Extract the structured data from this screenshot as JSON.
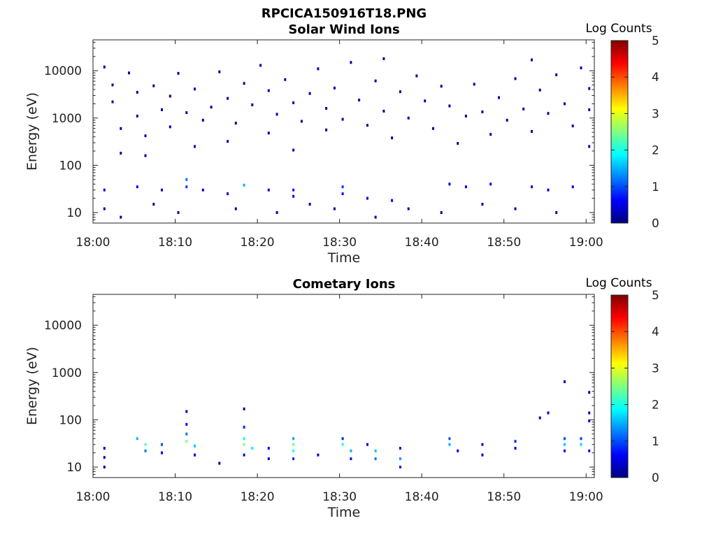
{
  "figure_title": "RPCICA150916T18.PNG",
  "colormap_stops": [
    "#00007f",
    "#0000ff",
    "#007fff",
    "#00ffff",
    "#7fff7f",
    "#ffff00",
    "#ff7f00",
    "#ff0000",
    "#7f0000"
  ],
  "chart_data": [
    {
      "type": "heatmap",
      "title": "Solar Wind Ions",
      "xlabel": "Time",
      "ylabel": "Energy (eV)",
      "yscale": "log",
      "ylim": [
        6,
        45000
      ],
      "xlim": [
        "18:00",
        "19:01"
      ],
      "xticks": [
        "18:00",
        "18:10",
        "18:20",
        "18:30",
        "18:40",
        "18:50",
        "19:00"
      ],
      "yticks": [
        "10",
        "100",
        "1000",
        "10000"
      ],
      "colorbar": {
        "label": "Log Counts",
        "range": [
          0,
          5
        ],
        "ticks": [
          "0",
          "1",
          "2",
          "3",
          "4",
          "5"
        ]
      },
      "pixels": [
        [
          "18:01",
          12000,
          0.2
        ],
        [
          "18:02",
          5000,
          0.2
        ],
        [
          "18:02",
          2200,
          0.2
        ],
        [
          "18:03",
          600,
          0.2
        ],
        [
          "18:03",
          180,
          0.2
        ],
        [
          "18:04",
          9000,
          0.2
        ],
        [
          "18:05",
          3500,
          0.2
        ],
        [
          "18:05",
          1100,
          0.2
        ],
        [
          "18:06",
          420,
          0.2
        ],
        [
          "18:06",
          160,
          0.2
        ],
        [
          "18:07",
          4800,
          0.2
        ],
        [
          "18:08",
          1500,
          0.2
        ],
        [
          "18:09",
          650,
          0.2
        ],
        [
          "18:09",
          2900,
          0.2
        ],
        [
          "18:10",
          8800,
          0.2
        ],
        [
          "18:11",
          1300,
          0.2
        ],
        [
          "18:12",
          250,
          0.2
        ],
        [
          "18:12",
          4100,
          0.2
        ],
        [
          "18:13",
          900,
          0.2
        ],
        [
          "18:14",
          1700,
          0.2
        ],
        [
          "18:15",
          9500,
          0.2
        ],
        [
          "18:16",
          2600,
          0.2
        ],
        [
          "18:16",
          320,
          0.2
        ],
        [
          "18:17",
          780,
          0.2
        ],
        [
          "18:18",
          5400,
          0.2
        ],
        [
          "18:19",
          1900,
          0.2
        ],
        [
          "18:20",
          13000,
          0.2
        ],
        [
          "18:21",
          3800,
          0.2
        ],
        [
          "18:21",
          480,
          0.2
        ],
        [
          "18:22",
          1200,
          0.2
        ],
        [
          "18:23",
          6500,
          0.2
        ],
        [
          "18:24",
          2100,
          0.2
        ],
        [
          "18:24",
          210,
          0.2
        ],
        [
          "18:25",
          850,
          0.2
        ],
        [
          "18:26",
          3300,
          0.2
        ],
        [
          "18:27",
          11000,
          0.2
        ],
        [
          "18:28",
          1600,
          0.2
        ],
        [
          "18:28",
          560,
          0.2
        ],
        [
          "18:29",
          4300,
          0.2
        ],
        [
          "18:30",
          940,
          0.2
        ],
        [
          "18:31",
          15000,
          0.2
        ],
        [
          "18:32",
          2400,
          0.2
        ],
        [
          "18:33",
          700,
          0.2
        ],
        [
          "18:34",
          6100,
          0.2
        ],
        [
          "18:35",
          18000,
          0.2
        ],
        [
          "18:35",
          1400,
          0.2
        ],
        [
          "18:36",
          380,
          0.2
        ],
        [
          "18:37",
          3600,
          0.2
        ],
        [
          "18:38",
          1000,
          0.2
        ],
        [
          "18:39",
          7800,
          0.2
        ],
        [
          "18:40",
          2300,
          0.2
        ],
        [
          "18:41",
          600,
          0.2
        ],
        [
          "18:42",
          4700,
          0.2
        ],
        [
          "18:43",
          1800,
          0.2
        ],
        [
          "18:44",
          290,
          0.2
        ],
        [
          "18:45",
          1100,
          0.2
        ],
        [
          "18:46",
          5200,
          0.2
        ],
        [
          "18:47",
          1350,
          0.2
        ],
        [
          "18:48",
          450,
          0.2
        ],
        [
          "18:49",
          2700,
          0.2
        ],
        [
          "18:50",
          900,
          0.2
        ],
        [
          "18:51",
          6800,
          0.2
        ],
        [
          "18:52",
          1550,
          0.2
        ],
        [
          "18:53",
          17000,
          0.2
        ],
        [
          "18:53",
          520,
          0.2
        ],
        [
          "18:54",
          3900,
          0.2
        ],
        [
          "18:55",
          1250,
          0.2
        ],
        [
          "18:56",
          8200,
          0.2
        ],
        [
          "18:57",
          2000,
          0.2
        ],
        [
          "18:58",
          680,
          0.2
        ],
        [
          "18:59",
          11500,
          0.2
        ],
        [
          "19:00",
          4200,
          0.2
        ],
        [
          "19:00",
          1500,
          0.2
        ],
        [
          "19:00",
          250,
          0.2
        ],
        [
          "18:01",
          30,
          0.5
        ],
        [
          "18:05",
          35,
          0.6
        ],
        [
          "18:08",
          30,
          0.5
        ],
        [
          "18:11",
          50,
          1.2
        ],
        [
          "18:11",
          35,
          0.9
        ],
        [
          "18:13",
          30,
          0.5
        ],
        [
          "18:16",
          25,
          0.5
        ],
        [
          "18:18",
          38,
          1.5
        ],
        [
          "18:21",
          30,
          0.5
        ],
        [
          "18:24",
          30,
          0.7
        ],
        [
          "18:24",
          22,
          0.6
        ],
        [
          "18:30",
          35,
          0.9
        ],
        [
          "18:30",
          25,
          0.7
        ],
        [
          "18:33",
          20,
          0.5
        ],
        [
          "18:36",
          18,
          0.5
        ],
        [
          "18:43",
          40,
          0.5
        ],
        [
          "18:45",
          35,
          0.5
        ],
        [
          "18:48",
          40,
          0.5
        ],
        [
          "18:53",
          35,
          0.5
        ],
        [
          "18:55",
          30,
          0.5
        ],
        [
          "18:58",
          35,
          0.5
        ],
        [
          "18:01",
          12,
          0.2
        ],
        [
          "18:03",
          8,
          0.2
        ],
        [
          "18:07",
          15,
          0.2
        ],
        [
          "18:10",
          10,
          0.2
        ],
        [
          "18:17",
          12,
          0.2
        ],
        [
          "18:22",
          10,
          0.2
        ],
        [
          "18:26",
          15,
          0.2
        ],
        [
          "18:29",
          12,
          0.2
        ],
        [
          "18:34",
          8,
          0.2
        ],
        [
          "18:38",
          12,
          0.2
        ],
        [
          "18:42",
          10,
          0.2
        ],
        [
          "18:47",
          15,
          0.2
        ],
        [
          "18:51",
          12,
          0.2
        ],
        [
          "18:56",
          10,
          0.2
        ]
      ]
    },
    {
      "type": "heatmap",
      "title": "Cometary Ions",
      "xlabel": "Time",
      "ylabel": "Energy (eV)",
      "yscale": "log",
      "ylim": [
        6,
        45000
      ],
      "xlim": [
        "18:00",
        "19:01"
      ],
      "xticks": [
        "18:00",
        "18:10",
        "18:20",
        "18:30",
        "18:40",
        "18:50",
        "19:00"
      ],
      "yticks": [
        "10",
        "100",
        "1000",
        "10000"
      ],
      "colorbar": {
        "label": "Log Counts",
        "range": [
          0,
          5
        ],
        "ticks": [
          "0",
          "1",
          "2",
          "3",
          "4",
          "5"
        ]
      },
      "pixels": [
        [
          "18:01",
          25,
          0.3
        ],
        [
          "18:01",
          16,
          0.3
        ],
        [
          "18:01",
          10,
          0.2
        ],
        [
          "18:05",
          40,
          1.5
        ],
        [
          "18:06",
          30,
          2.3
        ],
        [
          "18:06",
          22,
          1.2
        ],
        [
          "18:08",
          30,
          1.0
        ],
        [
          "18:08",
          20,
          0.6
        ],
        [
          "18:11",
          150,
          0.3
        ],
        [
          "18:11",
          80,
          0.7
        ],
        [
          "18:11",
          50,
          1.2
        ],
        [
          "18:11",
          35,
          2.5
        ],
        [
          "18:12",
          28,
          1.6
        ],
        [
          "18:12",
          18,
          0.4
        ],
        [
          "18:15",
          12,
          0.2
        ],
        [
          "18:18",
          170,
          0.2
        ],
        [
          "18:18",
          70,
          0.8
        ],
        [
          "18:18",
          40,
          2.0
        ],
        [
          "18:18",
          30,
          2.6
        ],
        [
          "18:19",
          25,
          1.8
        ],
        [
          "18:18",
          18,
          0.6
        ],
        [
          "18:21",
          25,
          0.6
        ],
        [
          "18:21",
          15,
          0.4
        ],
        [
          "18:24",
          40,
          1.4
        ],
        [
          "18:24",
          30,
          2.4
        ],
        [
          "18:24",
          22,
          2.0
        ],
        [
          "18:24",
          15,
          0.8
        ],
        [
          "18:27",
          18,
          0.5
        ],
        [
          "18:30",
          40,
          0.8
        ],
        [
          "18:30",
          30,
          2.0
        ],
        [
          "18:31",
          22,
          1.5
        ],
        [
          "18:31",
          15,
          0.7
        ],
        [
          "18:33",
          30,
          0.5
        ],
        [
          "18:34",
          22,
          1.6
        ],
        [
          "18:34",
          15,
          1.2
        ],
        [
          "18:37",
          25,
          0.6
        ],
        [
          "18:37",
          15,
          1.4
        ],
        [
          "18:37",
          10,
          0.8
        ],
        [
          "18:43",
          40,
          1.0
        ],
        [
          "18:43",
          30,
          1.5
        ],
        [
          "18:44",
          22,
          0.6
        ],
        [
          "18:47",
          30,
          0.5
        ],
        [
          "18:47",
          18,
          0.4
        ],
        [
          "18:51",
          35,
          0.8
        ],
        [
          "18:51",
          25,
          0.5
        ],
        [
          "18:54",
          110,
          0.3
        ],
        [
          "18:55",
          140,
          0.3
        ],
        [
          "18:57",
          40,
          1.0
        ],
        [
          "18:57",
          30,
          1.6
        ],
        [
          "18:57",
          22,
          0.5
        ],
        [
          "18:59",
          40,
          0.9
        ],
        [
          "18:59",
          30,
          1.7
        ],
        [
          "19:00",
          22,
          0.6
        ],
        [
          "18:57",
          640,
          0.2
        ],
        [
          "19:00",
          380,
          0.2
        ],
        [
          "19:00",
          140,
          0.2
        ],
        [
          "19:00",
          95,
          0.3
        ]
      ]
    }
  ]
}
